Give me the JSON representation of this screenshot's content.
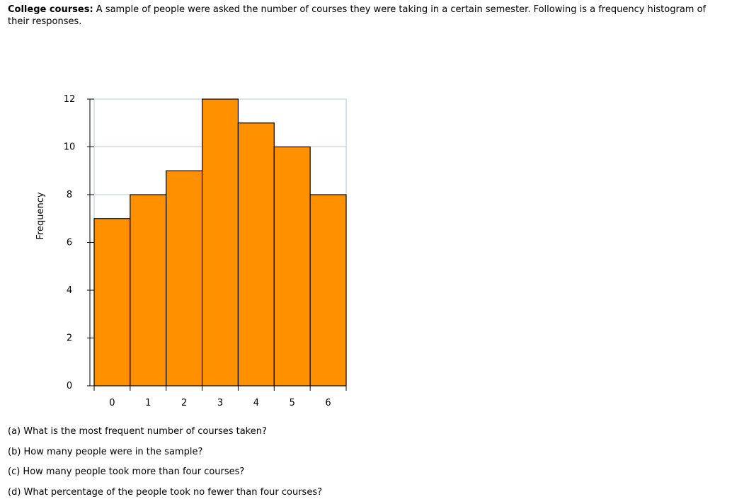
{
  "intro": {
    "title": "College courses:",
    "text": " A sample of people were asked the number of courses they were taking in a certain semester. Following is a frequency histogram of their responses."
  },
  "chart_data": {
    "type": "bar",
    "categories": [
      "0",
      "1",
      "2",
      "3",
      "4",
      "5",
      "6"
    ],
    "values": [
      7,
      8,
      9,
      12,
      11,
      10,
      8
    ],
    "title": "",
    "xlabel": "",
    "ylabel": "Frequency",
    "ylim": [
      0,
      12
    ],
    "yticks": [
      "0",
      "2",
      "4",
      "6",
      "8",
      "10",
      "12"
    ],
    "grid": true,
    "bar_color": "#ff9000",
    "bar_edge_color": "#000000",
    "grid_color": "#b8c8d0"
  },
  "questions": [
    "(a) What is the most frequent number of courses taken?",
    "(b) How many people were in the sample?",
    "(c) How many people took more than four courses?",
    "(d) What percentage of the people took no fewer than four courses?"
  ]
}
